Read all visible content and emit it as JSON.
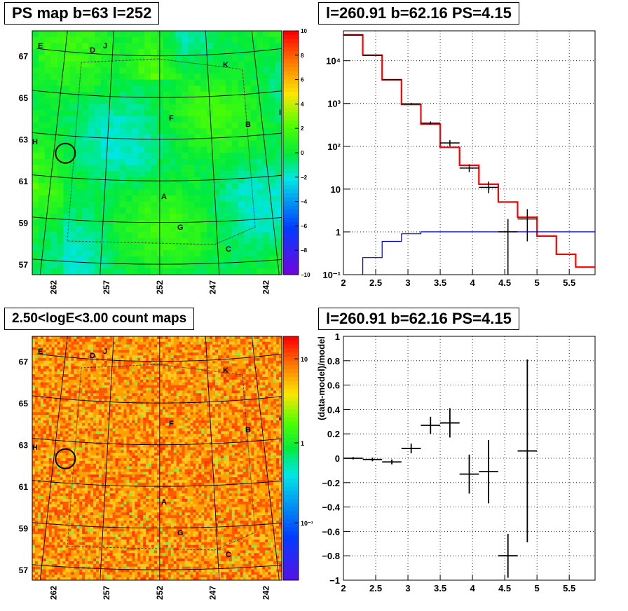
{
  "panels": {
    "ps_map": {
      "title": "PS map b=63 l=252",
      "lat_ticks": [
        "57",
        "59",
        "61",
        "63",
        "65",
        "67"
      ],
      "lon_ticks": [
        "262",
        "257",
        "252",
        "247",
        "242"
      ],
      "colorbar_ticks": [
        "10",
        "8",
        "6",
        "4",
        "2",
        "0",
        "−2",
        "−4",
        "−6",
        "−8",
        "−10"
      ],
      "region_letters": [
        "E",
        "D",
        "J",
        "K",
        "I",
        "F",
        "B",
        "H",
        "A",
        "G",
        "C"
      ]
    },
    "count_map": {
      "title": "2.50<logE<3.00 count maps",
      "lat_ticks": [
        "57",
        "59",
        "61",
        "63",
        "65",
        "67"
      ],
      "lon_ticks": [
        "262",
        "257",
        "252",
        "247",
        "242"
      ],
      "colorbar_ticks": [
        "10",
        "1",
        "10⁻¹"
      ],
      "region_letters": [
        "E",
        "D",
        "J",
        "K",
        "I",
        "F",
        "B",
        "H",
        "A",
        "G",
        "C"
      ]
    },
    "spectrum": {
      "title": "l=260.91 b=62.16 PS=4.15"
    },
    "ratio": {
      "title": "l=260.91 b=62.16 PS=4.15",
      "ylabel": "(data-model)/model"
    }
  },
  "chart_data": [
    {
      "type": "heatmap",
      "name_hint": "PS map",
      "title": "PS map b=63 l=252",
      "ylim": [
        56.5,
        68.2
      ],
      "xlim": [
        264,
        240.5
      ],
      "yticks": [
        57,
        59,
        61,
        63,
        65,
        67
      ],
      "xticks": [
        262,
        257,
        252,
        247,
        242
      ],
      "colorbar": {
        "min": -10,
        "max": 10,
        "ticks": [
          10,
          8,
          6,
          4,
          2,
          0,
          -2,
          -4,
          -6,
          -8,
          -10
        ]
      },
      "marker_circle": {
        "l": 260.91,
        "b": 62.16
      }
    },
    {
      "type": "line",
      "title": "l=260.91 b=62.16 PS=4.15",
      "xlim": [
        2,
        5.9
      ],
      "ylim": [
        0.1,
        50000
      ],
      "yscale": "log",
      "xticks": [
        2,
        2.5,
        3,
        3.5,
        4,
        4.5,
        5,
        5.5
      ],
      "yticks": [
        "10⁻¹",
        "1",
        "10",
        "10²",
        "10³",
        "10⁴"
      ],
      "grid": true,
      "series": [
        {
          "role": "model",
          "color": "#ff0000",
          "edges": [
            2.0,
            2.3,
            2.6,
            2.9,
            3.2,
            3.5,
            3.8,
            4.1,
            4.4,
            4.7,
            5.0,
            5.3,
            5.6,
            5.9
          ],
          "values": [
            40000,
            13500,
            3600,
            950,
            330,
            95,
            36,
            13,
            5,
            2.2,
            0.8,
            0.3,
            0.15
          ]
        },
        {
          "role": "background",
          "color": "#0000cc",
          "edges": [
            2.0,
            2.3,
            2.6,
            2.9,
            3.2,
            3.5,
            3.8,
            4.1,
            4.4,
            4.7,
            5.0,
            5.3,
            5.6,
            5.9
          ],
          "values": [
            0.02,
            0.25,
            0.6,
            0.9,
            1.0,
            1.0,
            1.0,
            1.0,
            1.0,
            1.0,
            1.0,
            1.0,
            1.0
          ]
        },
        {
          "role": "data",
          "color": "#000000",
          "points": [
            {
              "x": 2.15,
              "y": 40000,
              "lo": 39500,
              "hi": 40500
            },
            {
              "x": 2.45,
              "y": 13300,
              "lo": 13000,
              "hi": 13600
            },
            {
              "x": 2.75,
              "y": 3600,
              "lo": 3500,
              "hi": 3700
            },
            {
              "x": 3.05,
              "y": 980,
              "lo": 930,
              "hi": 1030
            },
            {
              "x": 3.35,
              "y": 350,
              "lo": 320,
              "hi": 380
            },
            {
              "x": 3.65,
              "y": 120,
              "lo": 100,
              "hi": 140
            },
            {
              "x": 3.95,
              "y": 31,
              "lo": 25,
              "hi": 38
            },
            {
              "x": 4.25,
              "y": 11,
              "lo": 8,
              "hi": 15
            },
            {
              "x": 4.55,
              "y": 1,
              "lo": 0.1,
              "hi": 2
            },
            {
              "x": 4.85,
              "y": 2,
              "lo": 0.6,
              "hi": 3.4
            }
          ]
        }
      ]
    },
    {
      "type": "heatmap",
      "title": "2.50<logE<3.00 count maps",
      "ylim": [
        56.5,
        68.2
      ],
      "xlim": [
        264,
        240.5
      ],
      "yticks": [
        57,
        59,
        61,
        63,
        65,
        67
      ],
      "xticks": [
        262,
        257,
        252,
        247,
        242
      ],
      "colorbar": {
        "scale": "log",
        "ticks": [
          "10",
          "1",
          "10⁻¹"
        ]
      },
      "marker_circle": {
        "l": 260.91,
        "b": 62.16
      }
    },
    {
      "type": "scatter",
      "title": "l=260.91 b=62.16 PS=4.15",
      "ylabel": "(data-model)/model",
      "xlim": [
        2,
        5.9
      ],
      "ylim": [
        -1,
        1
      ],
      "xticks": [
        2,
        2.5,
        3,
        3.5,
        4,
        4.5,
        5,
        5.5
      ],
      "yticks": [
        -1,
        -0.8,
        -0.6,
        -0.4,
        -0.2,
        0,
        0.2,
        0.4,
        0.6,
        0.8,
        1
      ],
      "grid": true,
      "points": [
        {
          "x": 2.15,
          "y": 0.0,
          "err": 0.01
        },
        {
          "x": 2.45,
          "y": -0.01,
          "err": 0.015
        },
        {
          "x": 2.75,
          "y": -0.03,
          "err": 0.02
        },
        {
          "x": 3.05,
          "y": 0.08,
          "err": 0.04
        },
        {
          "x": 3.35,
          "y": 0.27,
          "err": 0.07
        },
        {
          "x": 3.65,
          "y": 0.29,
          "err": 0.12
        },
        {
          "x": 3.95,
          "y": -0.13,
          "err": 0.16
        },
        {
          "x": 4.25,
          "y": -0.11,
          "err": 0.26
        },
        {
          "x": 4.55,
          "y": -0.8,
          "err": 0.18
        },
        {
          "x": 4.85,
          "y": 0.06,
          "err": 0.75
        }
      ]
    }
  ]
}
